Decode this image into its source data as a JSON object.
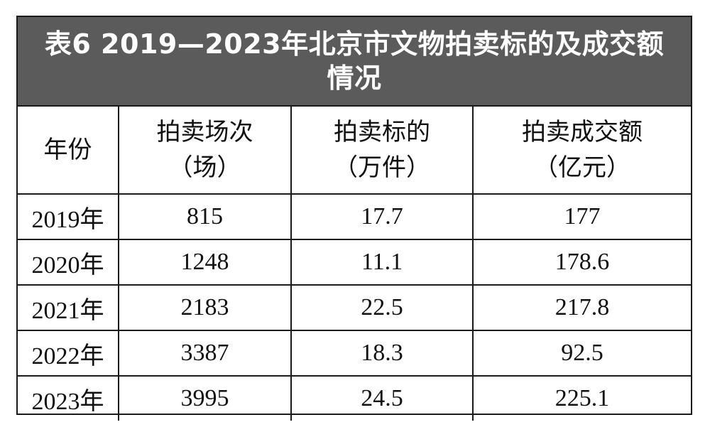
{
  "title": "表6  2019—2023年北京市文物拍卖标的及成交额情况",
  "columns": {
    "year": "年份",
    "sessions_line1": "拍卖场次",
    "sessions_line2": "（场）",
    "lots_line1": "拍卖标的",
    "lots_line2": "（万件）",
    "amount_line1": "拍卖成交额",
    "amount_line2": "（亿元）"
  },
  "rows": [
    {
      "year": "2019年",
      "sessions": "815",
      "lots": "17.7",
      "amount": "177"
    },
    {
      "year": "2020年",
      "sessions": "1248",
      "lots": "11.1",
      "amount": "178.6"
    },
    {
      "year": "2021年",
      "sessions": "2183",
      "lots": "22.5",
      "amount": "217.8"
    },
    {
      "year": "2022年",
      "sessions": "3387",
      "lots": "18.3",
      "amount": "92.5"
    },
    {
      "year": "2023年",
      "sessions": "3995",
      "lots": "24.5",
      "amount": "225.1"
    }
  ],
  "colors": {
    "title_background": "#5b5b5b",
    "title_text": "#ffffff",
    "border": "#1a1a1a"
  }
}
